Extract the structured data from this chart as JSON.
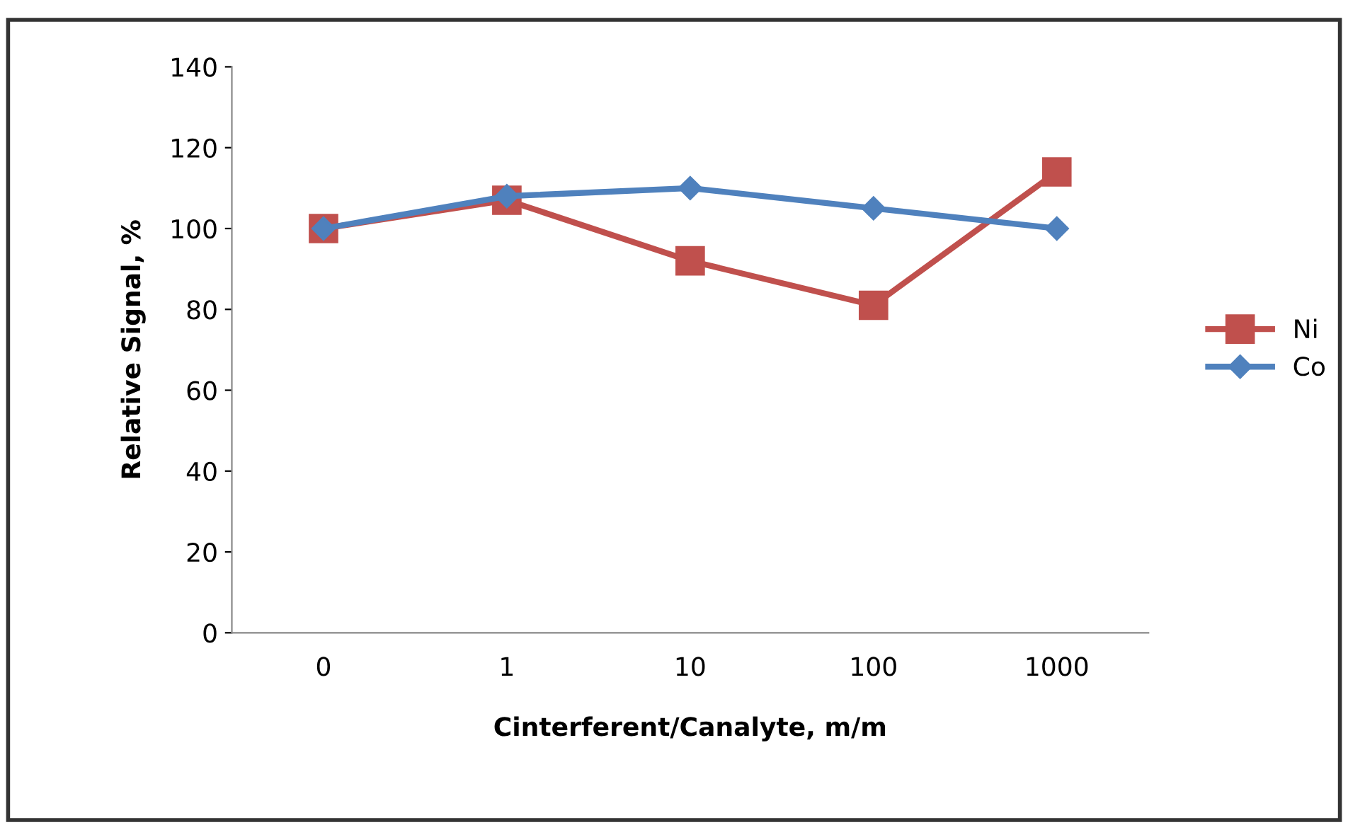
{
  "chart_data": {
    "type": "line",
    "xlabel": "Cinterferent/Canalyte, m/m",
    "ylabel": "Relative Signal, %",
    "categories": [
      "0",
      "1",
      "10",
      "100",
      "1000"
    ],
    "series": [
      {
        "name": "Ni",
        "color": "#c0504d",
        "marker": "square",
        "values": [
          100,
          107,
          92,
          81,
          114
        ]
      },
      {
        "name": "Co",
        "color": "#4f81bd",
        "marker": "diamond",
        "values": [
          100,
          108,
          110,
          105,
          100
        ]
      }
    ],
    "ylim": [
      0,
      140
    ],
    "yticks": [
      0,
      20,
      40,
      60,
      80,
      100,
      120,
      140
    ],
    "grid": false,
    "legend": "right"
  }
}
